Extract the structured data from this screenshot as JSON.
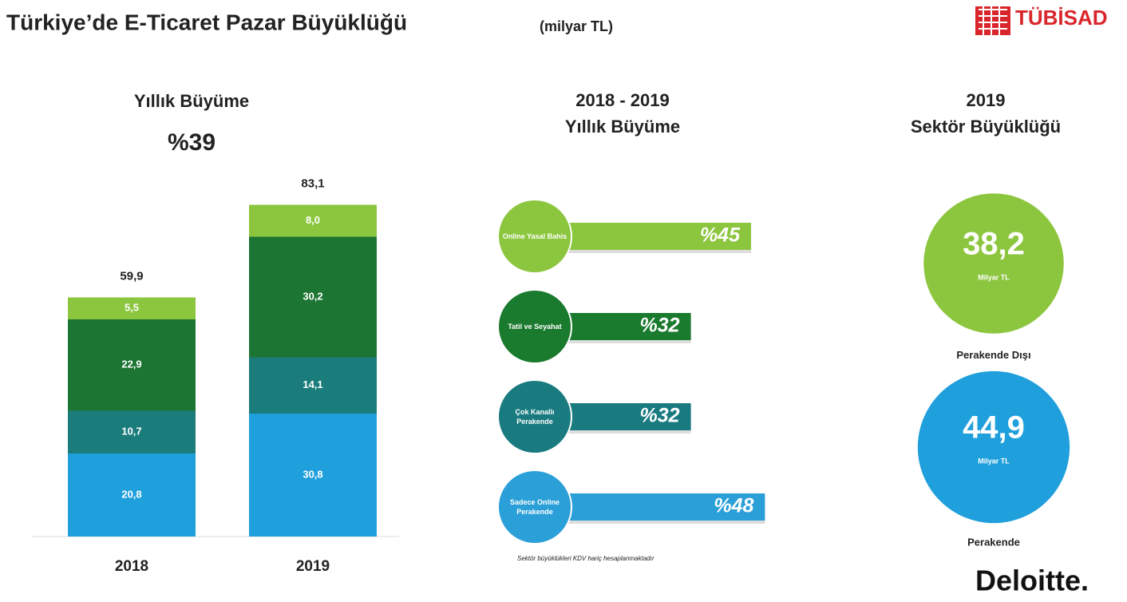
{
  "header": {
    "title": "Türkiye’de E-Ticaret Pazar Büyüklüğü",
    "unit": "(milyar TL)",
    "logo": "TÜBİSAD"
  },
  "chart_data": [
    {
      "type": "stacked_bar",
      "title": "Yıllık Büyüme",
      "annotation": "%39",
      "categories": [
        "2018",
        "2019"
      ],
      "series": [
        {
          "color": "#1f9fdc",
          "values": [
            20.8,
            30.8
          ],
          "value_labels": [
            "20,8",
            "30,8"
          ]
        },
        {
          "color": "#1b7c7c",
          "values": [
            10.7,
            14.1
          ],
          "value_labels": [
            "10,7",
            "14,1"
          ]
        },
        {
          "color": "#1d7533",
          "values": [
            22.9,
            30.2
          ],
          "value_labels": [
            "22,9",
            "30,2"
          ]
        },
        {
          "color": "#8cc63f",
          "values": [
            5.5,
            8.0
          ],
          "value_labels": [
            "5,5",
            "8,0"
          ]
        }
      ],
      "totals": [
        59.9,
        83.1
      ],
      "total_labels": [
        "59,9",
        "83,1"
      ],
      "ylim": [
        0,
        86
      ]
    },
    {
      "type": "hbar",
      "title": "2018 - 2019",
      "subtitle": "Yıllık Büyüme",
      "categories": [
        "Online Yasal Bahis",
        "Tatil ve Seyahat",
        "Çok Kanallı Perakende",
        "Sadece Online Perakende"
      ],
      "values": [
        45,
        32,
        32,
        48
      ],
      "value_labels": [
        "%45",
        "%32",
        "%32",
        "%48"
      ],
      "colors": [
        "#8cc63f",
        "#1a7a2e",
        "#197b80",
        "#2a9fd8"
      ],
      "xlim": [
        0,
        50
      ]
    },
    {
      "type": "bubble",
      "title": "2019",
      "subtitle": "Sektör Büyüklüğü",
      "categories": [
        "Perakende Dışı",
        "Perakende"
      ],
      "values": [
        38.2,
        44.9
      ],
      "value_labels": [
        "38,2",
        "44,9"
      ],
      "unit": "Milyar TL",
      "colors": [
        "#8cc63f",
        "#1f9fdc"
      ]
    }
  ],
  "note": "Sektör büyüklükleri KDV hariç hesaplanmaktadır",
  "footer": {
    "brand": "Deloitte."
  }
}
